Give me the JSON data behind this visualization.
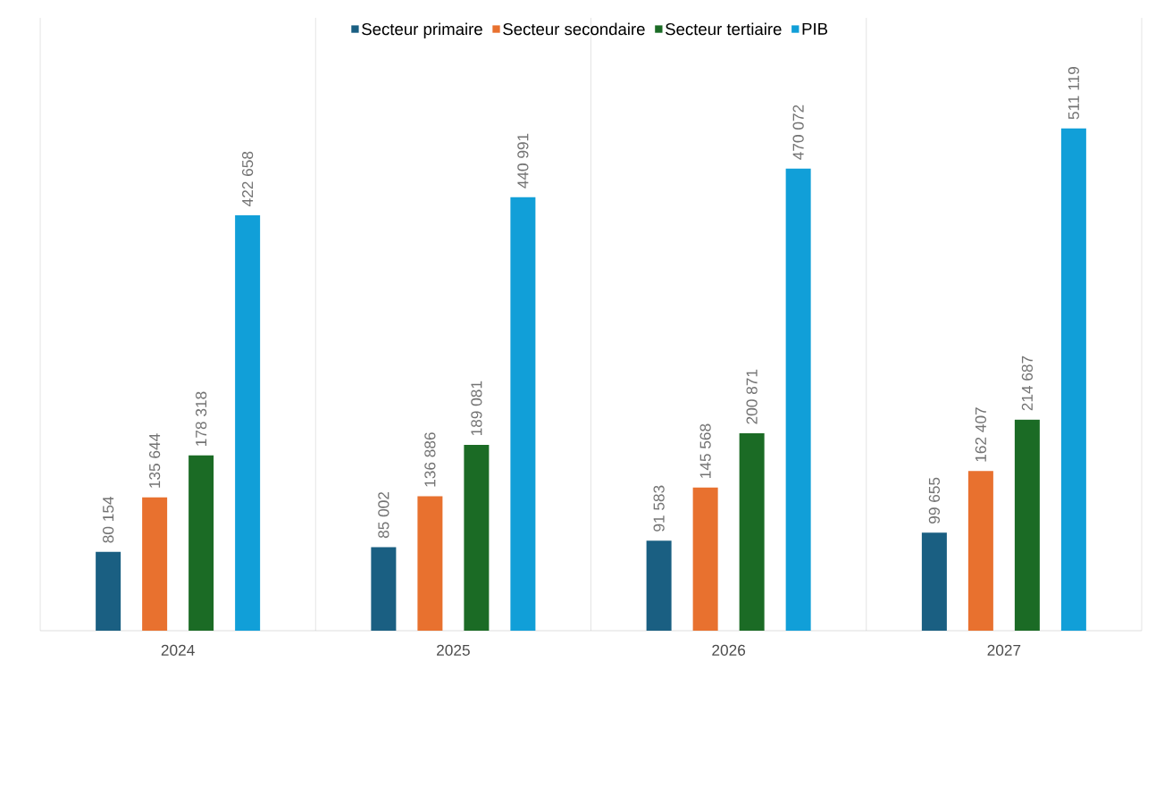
{
  "chart_data": {
    "type": "bar",
    "categories": [
      "2024",
      "2025",
      "2026",
      "2027"
    ],
    "series": [
      {
        "name": "Secteur primaire",
        "color": "#1a5f82",
        "values": [
          80154,
          85002,
          91583,
          99655
        ],
        "value_labels": [
          "80 154",
          "85 002",
          "91 583",
          "99 655"
        ]
      },
      {
        "name": "Secteur secondaire",
        "color": "#e8712f",
        "values": [
          135644,
          136886,
          145568,
          162407
        ],
        "value_labels": [
          "135 644",
          "136 886",
          "145 568",
          "162 407"
        ]
      },
      {
        "name": "Secteur tertiaire",
        "color": "#1b6b25",
        "values": [
          178318,
          189081,
          200871,
          214687
        ],
        "value_labels": [
          "178 318",
          "189 081",
          "200 871",
          "214 687"
        ]
      },
      {
        "name": "PIB",
        "color": "#119fd8",
        "values": [
          422658,
          440991,
          470072,
          511119
        ],
        "value_labels": [
          "422 658",
          "440 991",
          "470 072",
          "511 119"
        ]
      }
    ],
    "grid": "x",
    "legend": "top",
    "tick_labels": "x"
  }
}
